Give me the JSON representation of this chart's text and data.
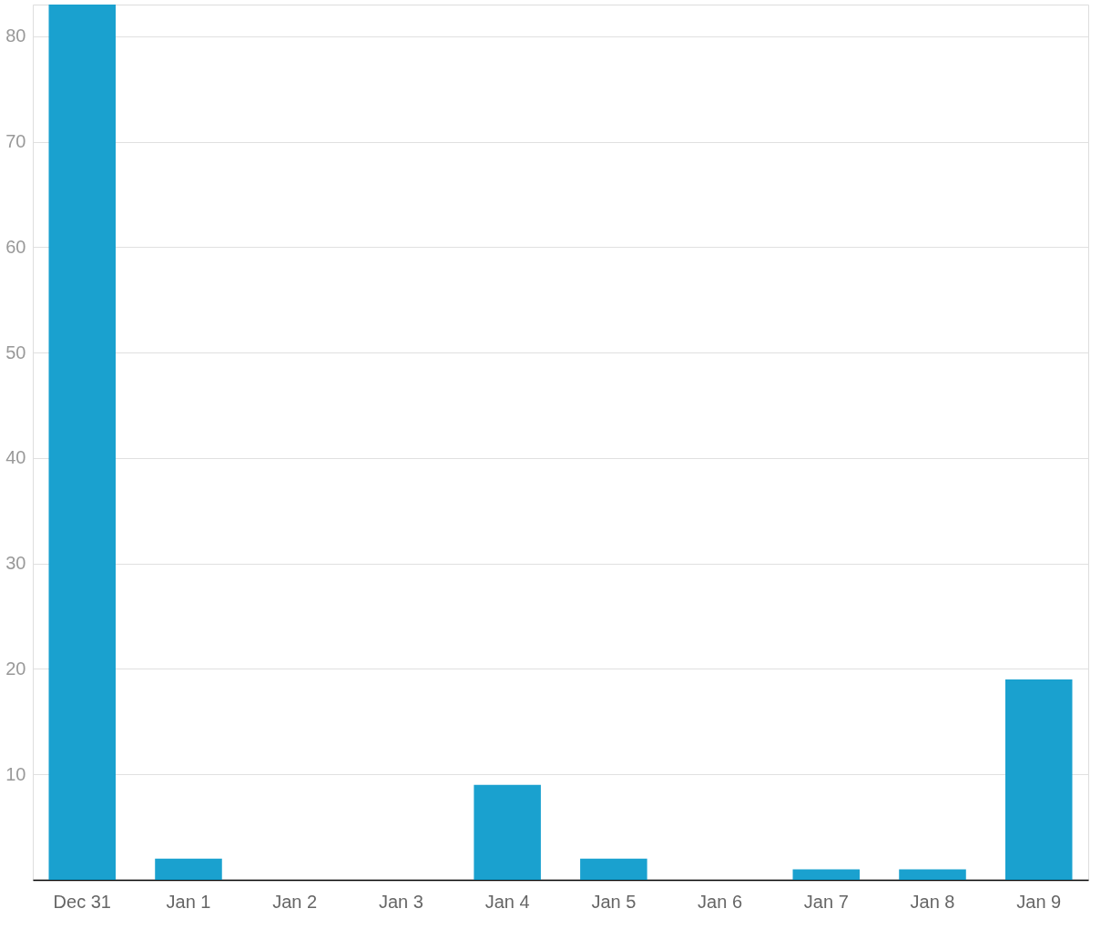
{
  "chart_data": {
    "type": "bar",
    "categories": [
      "Dec 31",
      "Jan 1",
      "Jan 2",
      "Jan 3",
      "Jan 4",
      "Jan 5",
      "Jan 6",
      "Jan 7",
      "Jan 8",
      "Jan 9"
    ],
    "values": [
      83,
      2,
      0,
      0,
      9,
      2,
      0,
      1,
      1,
      19
    ],
    "color": "#1aa1cf",
    "ylim": [
      0,
      83
    ],
    "yticks": [
      10,
      20,
      30,
      40,
      50,
      60,
      70,
      80
    ],
    "grid": "y"
  }
}
